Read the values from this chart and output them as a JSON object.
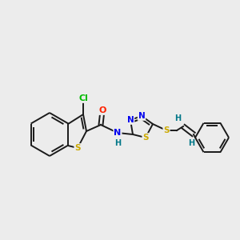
{
  "background_color": "#ececec",
  "bond_color": "#1a1a1a",
  "atom_colors": {
    "Cl": "#00bb00",
    "S": "#ccaa00",
    "O": "#ff2200",
    "N": "#0000ee",
    "H": "#007788",
    "C": "#1a1a1a"
  },
  "figsize": [
    3.0,
    3.0
  ],
  "dpi": 100,
  "lw": 1.4
}
